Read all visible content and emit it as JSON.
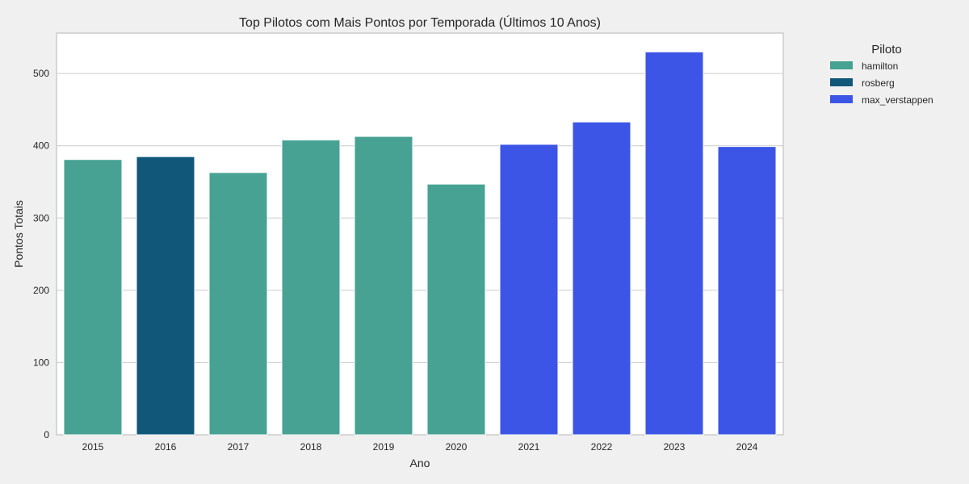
{
  "chart_data": {
    "type": "bar",
    "title": "Top Pilotos com Mais Pontos por Temporada (Últimos 10 Anos)",
    "xlabel": "Ano",
    "ylabel": "Pontos Totais",
    "categories": [
      "2015",
      "2016",
      "2017",
      "2018",
      "2019",
      "2020",
      "2021",
      "2022",
      "2023",
      "2024"
    ],
    "values": [
      381,
      385,
      363,
      408,
      413,
      347,
      402,
      433,
      530,
      399
    ],
    "drivers": [
      "hamilton",
      "rosberg",
      "hamilton",
      "hamilton",
      "hamilton",
      "hamilton",
      "max_verstappen",
      "max_verstappen",
      "max_verstappen",
      "max_verstappen"
    ],
    "ylim": [
      0,
      556
    ],
    "yticks": [
      0,
      100,
      200,
      300,
      400,
      500
    ],
    "grid": true,
    "legend": {
      "title": "Piloto",
      "position": "outside-right",
      "entries": [
        {
          "name": "hamilton",
          "color": "#47a293"
        },
        {
          "name": "rosberg",
          "color": "#11577a"
        },
        {
          "name": "max_verstappen",
          "color": "#3c55e6"
        }
      ]
    }
  }
}
